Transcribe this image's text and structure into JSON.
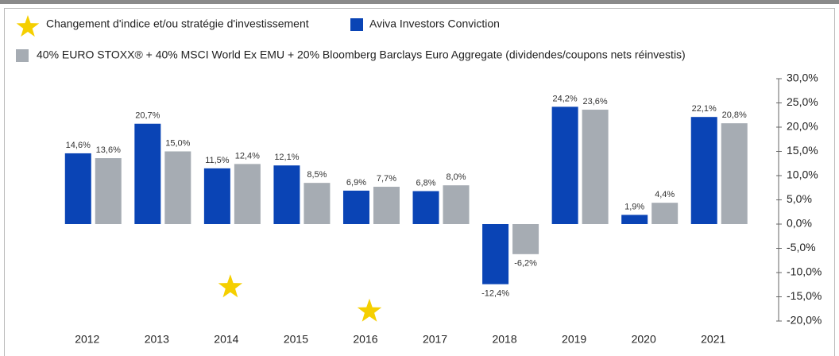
{
  "chart_data": {
    "type": "bar",
    "categories": [
      "2012",
      "2013",
      "2014",
      "2015",
      "2016",
      "2017",
      "2018",
      "2019",
      "2020",
      "2021"
    ],
    "series": [
      {
        "name": "Aviva Investors Conviction",
        "color": "#0a44b5",
        "values": [
          14.6,
          20.7,
          11.5,
          12.1,
          6.9,
          6.8,
          -12.4,
          24.2,
          1.9,
          22.1
        ],
        "value_labels": [
          "14,6%",
          "20,7%",
          "11,5%",
          "12,1%",
          "6,9%",
          "6,8%",
          "-12,4%",
          "24,2%",
          "1,9%",
          "22,1%"
        ]
      },
      {
        "name": "40% EURO STOXX® + 40% MSCI World Ex EMU + 20% Bloomberg Barclays Euro Aggregate (dividendes/coupons nets réinvestis)",
        "color": "#a6acb3",
        "values": [
          13.6,
          15.0,
          12.4,
          8.5,
          7.7,
          8.0,
          -6.2,
          23.6,
          4.4,
          20.8
        ],
        "value_labels": [
          "13,6%",
          "15,0%",
          "12,4%",
          "8,5%",
          "7,7%",
          "8,0%",
          "-6,2%",
          "23,6%",
          "4,4%",
          "20,8%"
        ]
      }
    ],
    "markers": {
      "name": "Changement d'indice et/ou stratégie d'investissement",
      "color": "#f5cf00",
      "categories": [
        "2014",
        "2016"
      ],
      "values": [
        -13,
        -18
      ]
    },
    "ylim": [
      -20,
      30
    ],
    "yticks": [
      {
        "value": 30,
        "label": "30,0%"
      },
      {
        "value": 25,
        "label": "25,0%"
      },
      {
        "value": 20,
        "label": "20,0%"
      },
      {
        "value": 15,
        "label": "15,0%"
      },
      {
        "value": 10,
        "label": "10,0%"
      },
      {
        "value": 5,
        "label": "5,0%"
      },
      {
        "value": 0,
        "label": "0,0%"
      },
      {
        "value": -5,
        "label": "-5,0%"
      },
      {
        "value": -10,
        "label": "-10,0%"
      },
      {
        "value": -15,
        "label": "-15,0%"
      },
      {
        "value": -20,
        "label": "-20,0%"
      }
    ],
    "y_axis_side": "right"
  }
}
